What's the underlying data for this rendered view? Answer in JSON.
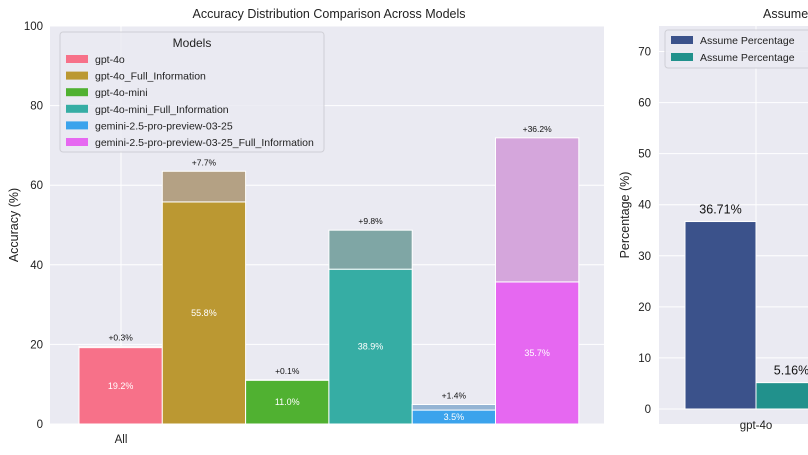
{
  "chart_data": [
    {
      "type": "bar",
      "title": "Accuracy Distribution Comparison Across Models",
      "ylabel": "Accuracy (%)",
      "xlabel": "",
      "categories": [
        "All"
      ],
      "ylim": [
        0,
        100
      ],
      "yticks": [
        0,
        20,
        40,
        60,
        80,
        100
      ],
      "grid": true,
      "legend": {
        "title": "Models",
        "placement": "top-left"
      },
      "series": [
        {
          "name": "gpt-4o",
          "base": 19.2,
          "base_label": "19.2%",
          "increment": 0.3,
          "increment_label": "+0.3%",
          "color": "#f77189",
          "overlay_color": "#f7a8b6"
        },
        {
          "name": "gpt-4o_Full_Information",
          "base": 55.8,
          "base_label": "55.8%",
          "increment": 7.7,
          "increment_label": "+7.7%",
          "color": "#bb9832",
          "overlay_color": "#b4a184"
        },
        {
          "name": "gpt-4o-mini",
          "base": 11.0,
          "base_label": "11.0%",
          "increment": 0.1,
          "increment_label": "+0.1%",
          "color": "#50b131",
          "overlay_color": "#8ec97c"
        },
        {
          "name": "gpt-4o-mini_Full_Information",
          "base": 38.9,
          "base_label": "38.9%",
          "increment": 9.8,
          "increment_label": "+9.8%",
          "color": "#36ada4",
          "overlay_color": "#7fa6a5"
        },
        {
          "name": "gemini-2.5-pro-preview-03-25",
          "base": 3.5,
          "base_label": "3.5%",
          "increment": 1.4,
          "increment_label": "+1.4%",
          "color": "#3ba3ec",
          "overlay_color": "#94b4d4"
        },
        {
          "name": "gemini-2.5-pro-preview-03-25_Full_Information",
          "base": 35.7,
          "base_label": "35.7%",
          "increment": 36.2,
          "increment_label": "+36.2%",
          "color": "#e668f1",
          "overlay_color": "#d5a6dc"
        }
      ]
    },
    {
      "type": "bar",
      "title": "Assume",
      "ylabel": "Percentage (%)",
      "xlabel": "",
      "categories": [
        "gpt-4o"
      ],
      "ylim": [
        0,
        75
      ],
      "yticks": [
        0,
        10,
        20,
        30,
        40,
        50,
        60,
        70
      ],
      "grid": true,
      "legend": {
        "placement": "top-left"
      },
      "series": [
        {
          "name": "Assume Percentage",
          "values": [
            36.71
          ],
          "value_labels": [
            "36.71%"
          ],
          "color": "#3b528b"
        },
        {
          "name": "Assume Percentage",
          "values": [
            5.16
          ],
          "value_labels": [
            "5.16%"
          ],
          "color": "#21918c"
        }
      ]
    }
  ]
}
